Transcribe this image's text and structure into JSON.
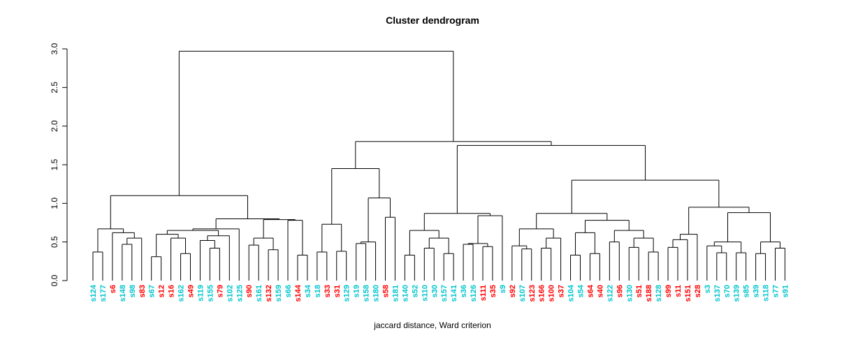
{
  "title": "Cluster dendrogram",
  "xlabel": "jaccard distance, Ward criterion",
  "chart_data": {
    "type": "dendrogram",
    "title": "Cluster dendrogram",
    "xlabel": "jaccard distance, Ward criterion",
    "ylabel": "",
    "ylim": [
      0,
      3
    ],
    "yticks": [
      "0.0",
      "0.5",
      "1.0",
      "1.5",
      "2.0",
      "2.5",
      "3.0"
    ],
    "grid": false,
    "palette": {
      "red": "#ff0000",
      "cyan": "#00c5cd"
    },
    "leaves": [
      {
        "label": "s124",
        "color": "cyan"
      },
      {
        "label": "s177",
        "color": "cyan"
      },
      {
        "label": "s6",
        "color": "red"
      },
      {
        "label": "s148",
        "color": "cyan"
      },
      {
        "label": "s98",
        "color": "cyan"
      },
      {
        "label": "s83",
        "color": "red"
      },
      {
        "label": "s67",
        "color": "cyan"
      },
      {
        "label": "s12",
        "color": "red"
      },
      {
        "label": "s16",
        "color": "red"
      },
      {
        "label": "s162",
        "color": "cyan"
      },
      {
        "label": "s49",
        "color": "red"
      },
      {
        "label": "s119",
        "color": "cyan"
      },
      {
        "label": "s155",
        "color": "cyan"
      },
      {
        "label": "s79",
        "color": "red"
      },
      {
        "label": "s102",
        "color": "cyan"
      },
      {
        "label": "s125",
        "color": "cyan"
      },
      {
        "label": "s90",
        "color": "red"
      },
      {
        "label": "s161",
        "color": "cyan"
      },
      {
        "label": "s132",
        "color": "red"
      },
      {
        "label": "s159",
        "color": "cyan"
      },
      {
        "label": "s66",
        "color": "cyan"
      },
      {
        "label": "s144",
        "color": "red"
      },
      {
        "label": "s34",
        "color": "cyan"
      },
      {
        "label": "s18",
        "color": "cyan"
      },
      {
        "label": "s33",
        "color": "red"
      },
      {
        "label": "s31",
        "color": "red"
      },
      {
        "label": "s129",
        "color": "cyan"
      },
      {
        "label": "s19",
        "color": "cyan"
      },
      {
        "label": "s158",
        "color": "cyan"
      },
      {
        "label": "s180",
        "color": "cyan"
      },
      {
        "label": "s58",
        "color": "red"
      },
      {
        "label": "s181",
        "color": "cyan"
      },
      {
        "label": "s140",
        "color": "cyan"
      },
      {
        "label": "s52",
        "color": "cyan"
      },
      {
        "label": "s110",
        "color": "cyan"
      },
      {
        "label": "s30",
        "color": "cyan"
      },
      {
        "label": "s157",
        "color": "cyan"
      },
      {
        "label": "s141",
        "color": "cyan"
      },
      {
        "label": "s36",
        "color": "cyan"
      },
      {
        "label": "s126",
        "color": "cyan"
      },
      {
        "label": "s111",
        "color": "red"
      },
      {
        "label": "s35",
        "color": "red"
      },
      {
        "label": "s9",
        "color": "cyan"
      },
      {
        "label": "s92",
        "color": "red"
      },
      {
        "label": "s107",
        "color": "cyan"
      },
      {
        "label": "s123",
        "color": "red"
      },
      {
        "label": "s166",
        "color": "red"
      },
      {
        "label": "s100",
        "color": "red"
      },
      {
        "label": "s37",
        "color": "red"
      },
      {
        "label": "s104",
        "color": "cyan"
      },
      {
        "label": "s54",
        "color": "cyan"
      },
      {
        "label": "s64",
        "color": "red"
      },
      {
        "label": "s40",
        "color": "red"
      },
      {
        "label": "s122",
        "color": "cyan"
      },
      {
        "label": "s96",
        "color": "red"
      },
      {
        "label": "s130",
        "color": "cyan"
      },
      {
        "label": "s51",
        "color": "red"
      },
      {
        "label": "s188",
        "color": "red"
      },
      {
        "label": "s128",
        "color": "cyan"
      },
      {
        "label": "s99",
        "color": "red"
      },
      {
        "label": "s11",
        "color": "red"
      },
      {
        "label": "s151",
        "color": "red"
      },
      {
        "label": "s28",
        "color": "red"
      },
      {
        "label": "s3",
        "color": "cyan"
      },
      {
        "label": "s137",
        "color": "cyan"
      },
      {
        "label": "s70",
        "color": "cyan"
      },
      {
        "label": "s139",
        "color": "cyan"
      },
      {
        "label": "s85",
        "color": "cyan"
      },
      {
        "label": "s39",
        "color": "cyan"
      },
      {
        "label": "s118",
        "color": "cyan"
      },
      {
        "label": "s77",
        "color": "cyan"
      },
      {
        "label": "s91",
        "color": "cyan"
      }
    ],
    "tree": {
      "h": 2.97,
      "c": [
        {
          "h": 1.1,
          "c": [
            {
              "h": 0.67,
              "c": [
                {
                  "h": 0.37,
                  "c": [
                    0,
                    1
                  ]
                },
                {
                  "h": 0.62,
                  "c": [
                    2,
                    {
                      "h": 0.55,
                      "c": [
                        {
                          "h": 0.47,
                          "c": [
                            3,
                            4
                          ]
                        },
                        5
                      ]
                    }
                  ]
                }
              ]
            },
            {
              "h": 0.8,
              "c": [
                {
                  "h": 0.67,
                  "c": [
                    {
                      "h": 0.65,
                      "c": [
                        {
                          "h": 0.6,
                          "c": [
                            {
                              "h": 0.31,
                              "c": [
                                6,
                                7
                              ]
                            },
                            {
                              "h": 0.55,
                              "c": [
                                8,
                                {
                                  "h": 0.35,
                                  "c": [
                                    9,
                                    10
                                  ]
                                }
                              ]
                            }
                          ]
                        },
                        {
                          "h": 0.58,
                          "c": [
                            {
                              "h": 0.52,
                              "c": [
                                11,
                                {
                                  "h": 0.42,
                                  "c": [
                                    12,
                                    13
                                  ]
                                }
                              ]
                            },
                            14
                          ]
                        }
                      ]
                    },
                    15
                  ]
                },
                {
                  "h": 0.79,
                  "c": [
                    {
                      "h": 0.55,
                      "c": [
                        {
                          "h": 0.46,
                          "c": [
                            16,
                            17
                          ]
                        },
                        {
                          "h": 0.4,
                          "c": [
                            18,
                            19
                          ]
                        }
                      ]
                    },
                    {
                      "h": 0.78,
                      "c": [
                        20,
                        {
                          "h": 0.33,
                          "c": [
                            21,
                            22
                          ]
                        }
                      ]
                    }
                  ]
                }
              ]
            }
          ]
        },
        {
          "h": 1.8,
          "c": [
            {
              "h": 1.45,
              "c": [
                {
                  "h": 0.73,
                  "c": [
                    {
                      "h": 0.37,
                      "c": [
                        23,
                        24
                      ]
                    },
                    {
                      "h": 0.38,
                      "c": [
                        25,
                        26
                      ]
                    }
                  ]
                },
                {
                  "h": 1.07,
                  "c": [
                    {
                      "h": 0.5,
                      "c": [
                        {
                          "h": 0.48,
                          "c": [
                            27,
                            28
                          ]
                        },
                        29
                      ]
                    },
                    {
                      "h": 0.82,
                      "c": [
                        30,
                        31
                      ]
                    }
                  ]
                }
              ]
            },
            {
              "h": 1.75,
              "c": [
                {
                  "h": 0.87,
                  "c": [
                    {
                      "h": 0.65,
                      "c": [
                        {
                          "h": 0.33,
                          "c": [
                            32,
                            33
                          ]
                        },
                        {
                          "h": 0.55,
                          "c": [
                            {
                              "h": 0.42,
                              "c": [
                                34,
                                35
                              ]
                            },
                            {
                              "h": 0.35,
                              "c": [
                                36,
                                37
                              ]
                            }
                          ]
                        }
                      ]
                    },
                    {
                      "h": 0.84,
                      "c": [
                        {
                          "h": 0.48,
                          "c": [
                            {
                              "h": 0.47,
                              "c": [
                                38,
                                39
                              ]
                            },
                            {
                              "h": 0.44,
                              "c": [
                                40,
                                41
                              ]
                            }
                          ]
                        },
                        42
                      ]
                    }
                  ]
                },
                {
                  "h": 1.3,
                  "c": [
                    {
                      "h": 0.87,
                      "c": [
                        {
                          "h": 0.67,
                          "c": [
                            {
                              "h": 0.45,
                              "c": [
                                43,
                                {
                                  "h": 0.41,
                                  "c": [
                                    44,
                                    45
                                  ]
                                }
                              ]
                            },
                            {
                              "h": 0.55,
                              "c": [
                                {
                                  "h": 0.42,
                                  "c": [
                                    46,
                                    47
                                  ]
                                },
                                48
                              ]
                            }
                          ]
                        },
                        {
                          "h": 0.78,
                          "c": [
                            {
                              "h": 0.62,
                              "c": [
                                {
                                  "h": 0.33,
                                  "c": [
                                    49,
                                    50
                                  ]
                                },
                                {
                                  "h": 0.35,
                                  "c": [
                                    51,
                                    52
                                  ]
                                }
                              ]
                            },
                            {
                              "h": 0.65,
                              "c": [
                                {
                                  "h": 0.5,
                                  "c": [
                                    53,
                                    54
                                  ]
                                },
                                {
                                  "h": 0.55,
                                  "c": [
                                    {
                                      "h": 0.43,
                                      "c": [
                                        55,
                                        56
                                      ]
                                    },
                                    {
                                      "h": 0.37,
                                      "c": [
                                        57,
                                        58
                                      ]
                                    }
                                  ]
                                }
                              ]
                            }
                          ]
                        }
                      ]
                    },
                    {
                      "h": 0.95,
                      "c": [
                        {
                          "h": 0.6,
                          "c": [
                            {
                              "h": 0.53,
                              "c": [
                                {
                                  "h": 0.43,
                                  "c": [
                                    59,
                                    60
                                  ]
                                },
                                61
                              ]
                            },
                            62
                          ]
                        },
                        {
                          "h": 0.88,
                          "c": [
                            {
                              "h": 0.5,
                              "c": [
                                {
                                  "h": 0.45,
                                  "c": [
                                    63,
                                    {
                                      "h": 0.36,
                                      "c": [
                                        64,
                                        65
                                      ]
                                    }
                                  ]
                                },
                                {
                                  "h": 0.36,
                                  "c": [
                                    66,
                                    67
                                  ]
                                }
                              ]
                            },
                            {
                              "h": 0.5,
                              "c": [
                                {
                                  "h": 0.35,
                                  "c": [
                                    68,
                                    69
                                  ]
                                },
                                {
                                  "h": 0.42,
                                  "c": [
                                    70,
                                    71
                                  ]
                                }
                              ]
                            }
                          ]
                        }
                      ]
                    }
                  ]
                }
              ]
            }
          ]
        }
      ]
    }
  }
}
